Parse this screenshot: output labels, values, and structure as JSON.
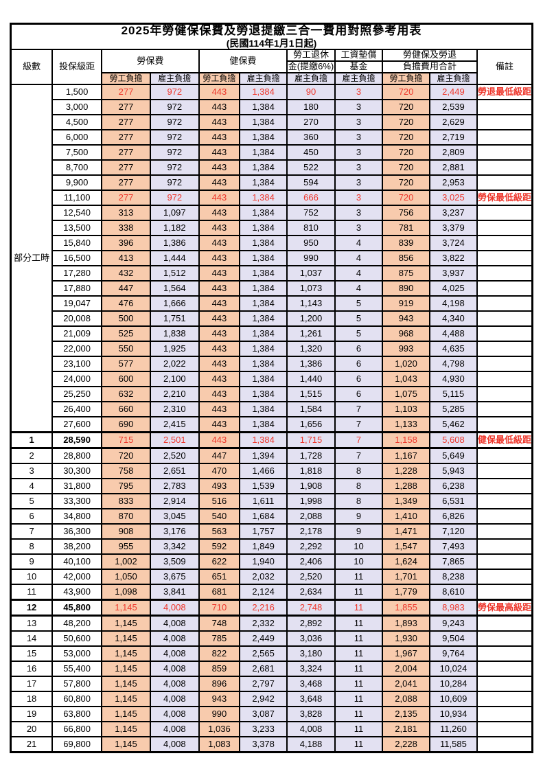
{
  "title": "2025年勞健保保費及勞退提繳三合一費用對照參考用表",
  "subtitle": "(民國114年1月1日起)",
  "columns": {
    "level": "級數",
    "bracket": "投保級距",
    "labor_ins": "勞保費",
    "health_ins": "健保費",
    "pension_line1": "勞工退休",
    "pension_line2": "金(提繳6%)",
    "wage_fund_line1": "工資墊償",
    "wage_fund_line2": "基金",
    "total_line1": "勞健保及勞退",
    "total_line2": "負擔費用合計",
    "note": "備註",
    "employee": "勞工負擔",
    "employer": "雇主負擔"
  },
  "group_label": "部分工時",
  "group_rows": 23,
  "colors": {
    "employee_bg": "#F8CBAD",
    "employer_bg": "#E3E1F2",
    "highlight_text": "#EE372C",
    "border": "#000000"
  },
  "rows": [
    {
      "level": "",
      "bracket": "1,500",
      "values": [
        "277",
        "972",
        "443",
        "1,384",
        "90",
        "3",
        "720",
        "2,449"
      ],
      "note": "勞退最低級距",
      "highlight": true,
      "bold": false
    },
    {
      "level": "",
      "bracket": "3,000",
      "values": [
        "277",
        "972",
        "443",
        "1,384",
        "180",
        "3",
        "720",
        "2,539"
      ],
      "note": "",
      "highlight": false,
      "bold": false
    },
    {
      "level": "",
      "bracket": "4,500",
      "values": [
        "277",
        "972",
        "443",
        "1,384",
        "270",
        "3",
        "720",
        "2,629"
      ],
      "note": "",
      "highlight": false,
      "bold": false
    },
    {
      "level": "",
      "bracket": "6,000",
      "values": [
        "277",
        "972",
        "443",
        "1,384",
        "360",
        "3",
        "720",
        "2,719"
      ],
      "note": "",
      "highlight": false,
      "bold": false
    },
    {
      "level": "",
      "bracket": "7,500",
      "values": [
        "277",
        "972",
        "443",
        "1,384",
        "450",
        "3",
        "720",
        "2,809"
      ],
      "note": "",
      "highlight": false,
      "bold": false
    },
    {
      "level": "",
      "bracket": "8,700",
      "values": [
        "277",
        "972",
        "443",
        "1,384",
        "522",
        "3",
        "720",
        "2,881"
      ],
      "note": "",
      "highlight": false,
      "bold": false
    },
    {
      "level": "",
      "bracket": "9,900",
      "values": [
        "277",
        "972",
        "443",
        "1,384",
        "594",
        "3",
        "720",
        "2,953"
      ],
      "note": "",
      "highlight": false,
      "bold": false
    },
    {
      "level": "",
      "bracket": "11,100",
      "values": [
        "277",
        "972",
        "443",
        "1,384",
        "666",
        "3",
        "720",
        "3,025"
      ],
      "note": "勞保最低級距",
      "highlight": true,
      "bold": false
    },
    {
      "level": "",
      "bracket": "12,540",
      "values": [
        "313",
        "1,097",
        "443",
        "1,384",
        "752",
        "3",
        "756",
        "3,237"
      ],
      "note": "",
      "highlight": false,
      "bold": false
    },
    {
      "level": "",
      "bracket": "13,500",
      "values": [
        "338",
        "1,182",
        "443",
        "1,384",
        "810",
        "3",
        "781",
        "3,379"
      ],
      "note": "",
      "highlight": false,
      "bold": false
    },
    {
      "level": "",
      "bracket": "15,840",
      "values": [
        "396",
        "1,386",
        "443",
        "1,384",
        "950",
        "4",
        "839",
        "3,724"
      ],
      "note": "",
      "highlight": false,
      "bold": false
    },
    {
      "level": "",
      "bracket": "16,500",
      "values": [
        "413",
        "1,444",
        "443",
        "1,384",
        "990",
        "4",
        "856",
        "3,822"
      ],
      "note": "",
      "highlight": false,
      "bold": false
    },
    {
      "level": "",
      "bracket": "17,280",
      "values": [
        "432",
        "1,512",
        "443",
        "1,384",
        "1,037",
        "4",
        "875",
        "3,937"
      ],
      "note": "",
      "highlight": false,
      "bold": false
    },
    {
      "level": "",
      "bracket": "17,880",
      "values": [
        "447",
        "1,564",
        "443",
        "1,384",
        "1,073",
        "4",
        "890",
        "4,025"
      ],
      "note": "",
      "highlight": false,
      "bold": false
    },
    {
      "level": "",
      "bracket": "19,047",
      "values": [
        "476",
        "1,666",
        "443",
        "1,384",
        "1,143",
        "5",
        "919",
        "4,198"
      ],
      "note": "",
      "highlight": false,
      "bold": false
    },
    {
      "level": "",
      "bracket": "20,008",
      "values": [
        "500",
        "1,751",
        "443",
        "1,384",
        "1,200",
        "5",
        "943",
        "4,340"
      ],
      "note": "",
      "highlight": false,
      "bold": false
    },
    {
      "level": "",
      "bracket": "21,009",
      "values": [
        "525",
        "1,838",
        "443",
        "1,384",
        "1,261",
        "5",
        "968",
        "4,488"
      ],
      "note": "",
      "highlight": false,
      "bold": false
    },
    {
      "level": "",
      "bracket": "22,000",
      "values": [
        "550",
        "1,925",
        "443",
        "1,384",
        "1,320",
        "6",
        "993",
        "4,635"
      ],
      "note": "",
      "highlight": false,
      "bold": false
    },
    {
      "level": "",
      "bracket": "23,100",
      "values": [
        "577",
        "2,022",
        "443",
        "1,384",
        "1,386",
        "6",
        "1,020",
        "4,798"
      ],
      "note": "",
      "highlight": false,
      "bold": false
    },
    {
      "level": "",
      "bracket": "24,000",
      "values": [
        "600",
        "2,100",
        "443",
        "1,384",
        "1,440",
        "6",
        "1,043",
        "4,930"
      ],
      "note": "",
      "highlight": false,
      "bold": false
    },
    {
      "level": "",
      "bracket": "25,250",
      "values": [
        "632",
        "2,210",
        "443",
        "1,384",
        "1,515",
        "6",
        "1,075",
        "5,115"
      ],
      "note": "",
      "highlight": false,
      "bold": false
    },
    {
      "level": "",
      "bracket": "26,400",
      "values": [
        "660",
        "2,310",
        "443",
        "1,384",
        "1,584",
        "7",
        "1,103",
        "5,285"
      ],
      "note": "",
      "highlight": false,
      "bold": false
    },
    {
      "level": "",
      "bracket": "27,600",
      "values": [
        "690",
        "2,415",
        "443",
        "1,384",
        "1,656",
        "7",
        "1,133",
        "5,462"
      ],
      "note": "",
      "highlight": false,
      "bold": false
    },
    {
      "level": "1",
      "bracket": "28,590",
      "values": [
        "715",
        "2,501",
        "443",
        "1,384",
        "1,715",
        "7",
        "1,158",
        "5,608"
      ],
      "note": "健保最低級距",
      "highlight": true,
      "bold": true
    },
    {
      "level": "2",
      "bracket": "28,800",
      "values": [
        "720",
        "2,520",
        "447",
        "1,394",
        "1,728",
        "7",
        "1,167",
        "5,649"
      ],
      "note": "",
      "highlight": false,
      "bold": false
    },
    {
      "level": "3",
      "bracket": "30,300",
      "values": [
        "758",
        "2,651",
        "470",
        "1,466",
        "1,818",
        "8",
        "1,228",
        "5,943"
      ],
      "note": "",
      "highlight": false,
      "bold": false
    },
    {
      "level": "4",
      "bracket": "31,800",
      "values": [
        "795",
        "2,783",
        "493",
        "1,539",
        "1,908",
        "8",
        "1,288",
        "6,238"
      ],
      "note": "",
      "highlight": false,
      "bold": false
    },
    {
      "level": "5",
      "bracket": "33,300",
      "values": [
        "833",
        "2,914",
        "516",
        "1,611",
        "1,998",
        "8",
        "1,349",
        "6,531"
      ],
      "note": "",
      "highlight": false,
      "bold": false
    },
    {
      "level": "6",
      "bracket": "34,800",
      "values": [
        "870",
        "3,045",
        "540",
        "1,684",
        "2,088",
        "9",
        "1,410",
        "6,826"
      ],
      "note": "",
      "highlight": false,
      "bold": false
    },
    {
      "level": "7",
      "bracket": "36,300",
      "values": [
        "908",
        "3,176",
        "563",
        "1,757",
        "2,178",
        "9",
        "1,471",
        "7,120"
      ],
      "note": "",
      "highlight": false,
      "bold": false
    },
    {
      "level": "8",
      "bracket": "38,200",
      "values": [
        "955",
        "3,342",
        "592",
        "1,849",
        "2,292",
        "10",
        "1,547",
        "7,493"
      ],
      "note": "",
      "highlight": false,
      "bold": false
    },
    {
      "level": "9",
      "bracket": "40,100",
      "values": [
        "1,002",
        "3,509",
        "622",
        "1,940",
        "2,406",
        "10",
        "1,624",
        "7,865"
      ],
      "note": "",
      "highlight": false,
      "bold": false
    },
    {
      "level": "10",
      "bracket": "42,000",
      "values": [
        "1,050",
        "3,675",
        "651",
        "2,032",
        "2,520",
        "11",
        "1,701",
        "8,238"
      ],
      "note": "",
      "highlight": false,
      "bold": false
    },
    {
      "level": "11",
      "bracket": "43,900",
      "values": [
        "1,098",
        "3,841",
        "681",
        "2,124",
        "2,634",
        "11",
        "1,779",
        "8,610"
      ],
      "note": "",
      "highlight": false,
      "bold": false
    },
    {
      "level": "12",
      "bracket": "45,800",
      "values": [
        "1,145",
        "4,008",
        "710",
        "2,216",
        "2,748",
        "11",
        "1,855",
        "8,983"
      ],
      "note": "勞保最高級距",
      "highlight": true,
      "bold": true
    },
    {
      "level": "13",
      "bracket": "48,200",
      "values": [
        "1,145",
        "4,008",
        "748",
        "2,332",
        "2,892",
        "11",
        "1,893",
        "9,243"
      ],
      "note": "",
      "highlight": false,
      "bold": false
    },
    {
      "level": "14",
      "bracket": "50,600",
      "values": [
        "1,145",
        "4,008",
        "785",
        "2,449",
        "3,036",
        "11",
        "1,930",
        "9,504"
      ],
      "note": "",
      "highlight": false,
      "bold": false
    },
    {
      "level": "15",
      "bracket": "53,000",
      "values": [
        "1,145",
        "4,008",
        "822",
        "2,565",
        "3,180",
        "11",
        "1,967",
        "9,764"
      ],
      "note": "",
      "highlight": false,
      "bold": false
    },
    {
      "level": "16",
      "bracket": "55,400",
      "values": [
        "1,145",
        "4,008",
        "859",
        "2,681",
        "3,324",
        "11",
        "2,004",
        "10,024"
      ],
      "note": "",
      "highlight": false,
      "bold": false
    },
    {
      "level": "17",
      "bracket": "57,800",
      "values": [
        "1,145",
        "4,008",
        "896",
        "2,797",
        "3,468",
        "11",
        "2,041",
        "10,284"
      ],
      "note": "",
      "highlight": false,
      "bold": false
    },
    {
      "level": "18",
      "bracket": "60,800",
      "values": [
        "1,145",
        "4,008",
        "943",
        "2,942",
        "3,648",
        "11",
        "2,088",
        "10,609"
      ],
      "note": "",
      "highlight": false,
      "bold": false
    },
    {
      "level": "19",
      "bracket": "63,800",
      "values": [
        "1,145",
        "4,008",
        "990",
        "3,087",
        "3,828",
        "11",
        "2,135",
        "10,934"
      ],
      "note": "",
      "highlight": false,
      "bold": false
    },
    {
      "level": "20",
      "bracket": "66,800",
      "values": [
        "1,145",
        "4,008",
        "1,036",
        "3,233",
        "4,008",
        "11",
        "2,181",
        "11,260"
      ],
      "note": "",
      "highlight": false,
      "bold": false
    },
    {
      "level": "21",
      "bracket": "69,800",
      "values": [
        "1,145",
        "4,008",
        "1,083",
        "3,378",
        "4,188",
        "11",
        "2,228",
        "11,585"
      ],
      "note": "",
      "highlight": false,
      "bold": false
    }
  ]
}
